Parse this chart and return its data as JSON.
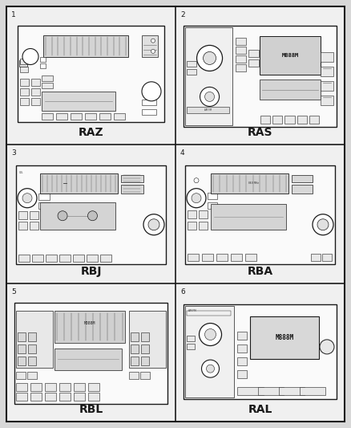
{
  "bg_color": "#d8d8d8",
  "outer_bg": "#c8c8c8",
  "cell_bg": "#f0f0f0",
  "radio_bg": "#ffffff",
  "line_color": "#1a1a1a",
  "gray_light": "#e8e8e8",
  "gray_med": "#cccccc",
  "gray_dark": "#aaaaaa",
  "cells": [
    {
      "num": "1",
      "label": "RAZ",
      "row": 0,
      "col": 0
    },
    {
      "num": "2",
      "label": "RAS",
      "row": 0,
      "col": 1
    },
    {
      "num": "3",
      "label": "RBJ",
      "row": 1,
      "col": 0
    },
    {
      "num": "4",
      "label": "RBA",
      "row": 1,
      "col": 1
    },
    {
      "num": "5",
      "label": "RBL",
      "row": 2,
      "col": 0
    },
    {
      "num": "6",
      "label": "RAL",
      "row": 2,
      "col": 1
    }
  ]
}
